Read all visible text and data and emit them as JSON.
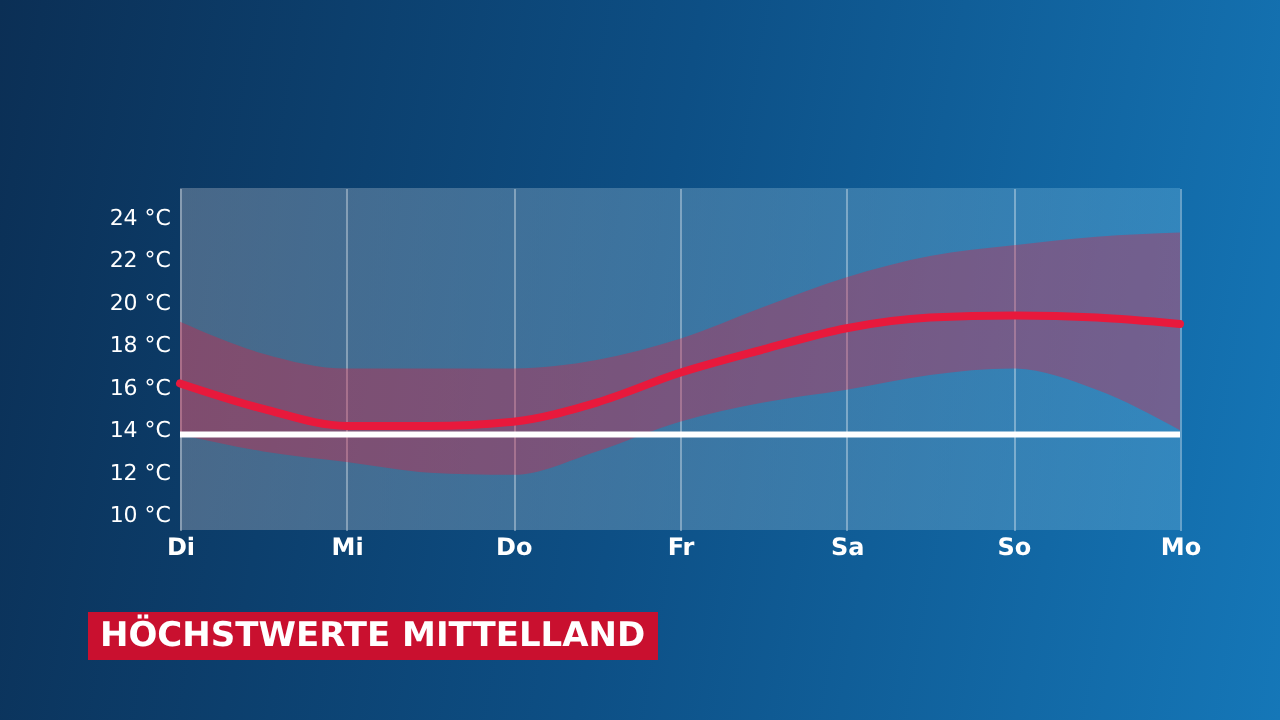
{
  "chart_data": {
    "type": "line",
    "title": "HÖCHSTWERTE MITTELLAND",
    "categories": [
      "Di",
      null,
      "Mi",
      null,
      "Do",
      null,
      "Fr",
      null,
      "Sa",
      null,
      "So",
      null,
      "Mo"
    ],
    "ylim": [
      9.3,
      25.4
    ],
    "yticks": [
      {
        "value": 10,
        "label": "10 °C"
      },
      {
        "value": 12,
        "label": "12 °C"
      },
      {
        "value": 14,
        "label": "14 °C"
      },
      {
        "value": 16,
        "label": "16 °C"
      },
      {
        "value": 18,
        "label": "18 °C"
      },
      {
        "value": 20,
        "label": "20 °C"
      },
      {
        "value": 22,
        "label": "22 °C"
      },
      {
        "value": 24,
        "label": "24 °C"
      }
    ],
    "series": [
      {
        "color": "#e8193c",
        "values": [
          16.2,
          15.0,
          14.2,
          14.2,
          14.4,
          15.3,
          16.7,
          17.8,
          18.8,
          19.3,
          19.4,
          19.3,
          19.0
        ],
        "lower": [
          13.8,
          13.0,
          12.5,
          12.0,
          11.9,
          13.0,
          14.4,
          15.3,
          15.9,
          16.6,
          16.9,
          15.9,
          14.0
        ],
        "upper": [
          19.1,
          17.6,
          16.9,
          16.9,
          16.9,
          17.3,
          18.3,
          19.8,
          21.2,
          22.2,
          22.7,
          23.1,
          23.3
        ]
      }
    ],
    "ref_lines": [
      {
        "axis": "y",
        "value": 13.8,
        "color": "#ffffff"
      }
    ],
    "grid": "x",
    "marker": "none",
    "line_style": "solid"
  }
}
